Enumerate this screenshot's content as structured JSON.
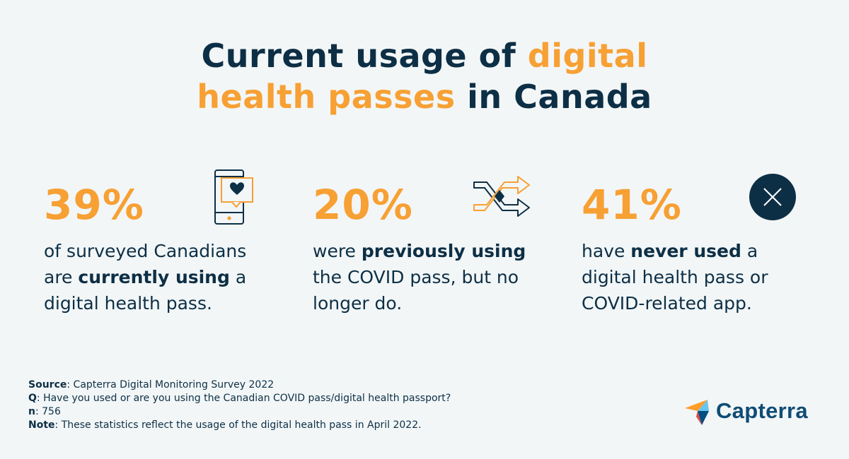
{
  "title": {
    "line1_a": "Current usage of ",
    "line1_b": "digital",
    "line2_a": "health passes",
    "line2_b": " in Canada"
  },
  "chart_data": {
    "type": "table",
    "title": "Current usage of digital health passes in Canada",
    "categories": [
      "currently using",
      "previously using",
      "never used"
    ],
    "values": [
      39,
      20,
      41
    ],
    "unit": "%"
  },
  "stats": [
    {
      "pct": "39%",
      "desc_before": "of surveyed Canadians are ",
      "desc_bold": "currently using",
      "desc_after": " a digital health pass.",
      "icon": "phone-heart-icon"
    },
    {
      "pct": "20%",
      "desc_before": "were ",
      "desc_bold": "previously using",
      "desc_after": " the COVID pass, but no longer do.",
      "icon": "shuffle-arrows-icon"
    },
    {
      "pct": "41%",
      "desc_before": "have ",
      "desc_bold": "never used",
      "desc_after": " a digital health pass or COVID-related app.",
      "icon": "x-circle-icon"
    }
  ],
  "footer": {
    "source_label": "Source",
    "source_text": ": Capterra Digital Monitoring Survey 2022",
    "q_label": "Q",
    "q_text": ": Have you used or are you using the Canadian COVID pass/digital health passport?",
    "n_label": "n",
    "n_text": ": 756",
    "note_label": "Note",
    "note_text": ": These statistics reflect the usage of the digital health pass in April 2022."
  },
  "logo": {
    "text": "Capterra"
  },
  "colors": {
    "navy": "#0d2f45",
    "orange": "#f7a033",
    "background": "#f2f6f7"
  }
}
